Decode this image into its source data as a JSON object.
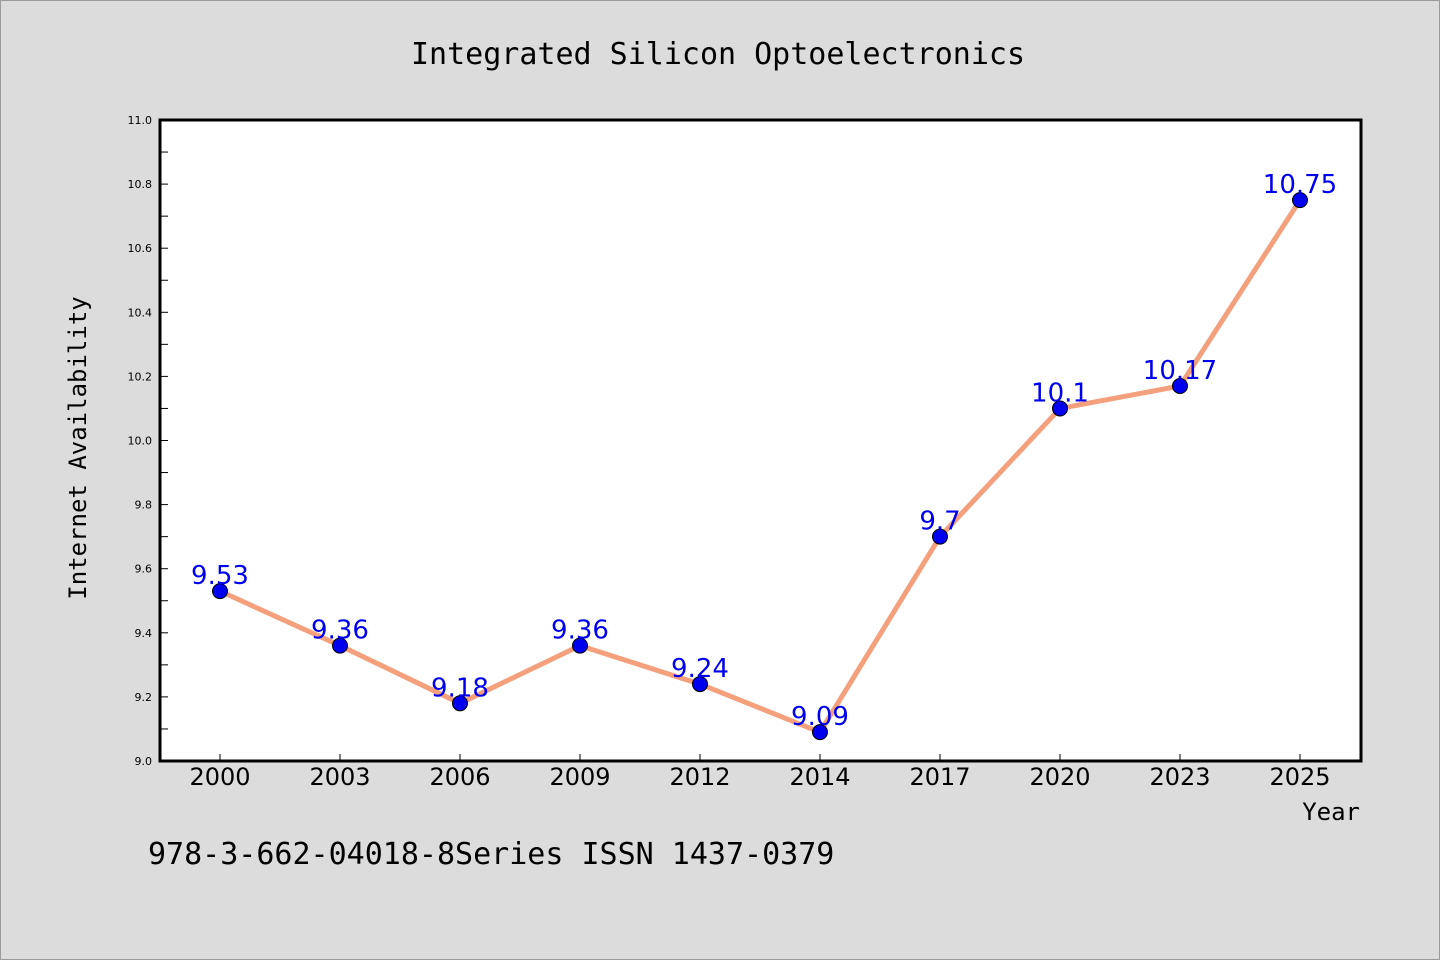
{
  "chart_data": {
    "type": "line",
    "title": "Integrated Silicon Optoelectronics",
    "xlabel": "Year",
    "ylabel": "Internet Availability",
    "categories": [
      "2000",
      "2003",
      "2006",
      "2009",
      "2012",
      "2014",
      "2017",
      "2020",
      "2023",
      "2025"
    ],
    "series": [
      {
        "values": [
          9.53,
          9.36,
          9.18,
          9.36,
          9.24,
          9.09,
          9.7,
          10.1,
          10.17,
          10.75
        ],
        "data_labels": [
          "9.53",
          "9.36",
          "9.18",
          "9.36",
          "9.24",
          "9.09",
          "9.7",
          "10.1",
          "10.17",
          "10.75"
        ]
      }
    ],
    "ylim": [
      9.0,
      11.0
    ],
    "yticks": [
      "9.0",
      "9.2",
      "9.4",
      "9.6",
      "9.8",
      "10.0",
      "10.2",
      "10.4",
      "10.6",
      "10.8",
      "11.0"
    ],
    "grid": false,
    "line_color": "#f4a07c",
    "marker_color": "#0000ee"
  },
  "footer_text": "978-3-662-04018-8Series ISSN 1437-0379"
}
